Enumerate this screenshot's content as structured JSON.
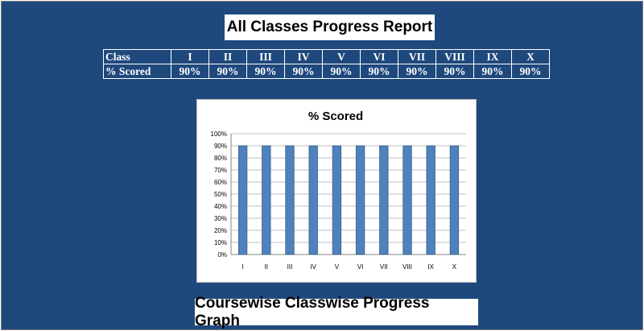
{
  "title": "All Classes Progress Report",
  "footer": "Coursewise Classwise Progress Graph",
  "table": {
    "header_label": "Class",
    "row_label": "% Scored",
    "classes": [
      "I",
      "II",
      "III",
      "IV",
      "V",
      "VI",
      "VII",
      "VIII",
      "IX",
      "X"
    ],
    "scores": [
      "90%",
      "90%",
      "90%",
      "90%",
      "90%",
      "90%",
      "90%",
      "90%",
      "90%",
      "90%"
    ]
  },
  "colors": {
    "background": "#1f497d",
    "bar": "#4f81bd",
    "bar_border": "#385d8a",
    "gridline": "#bfbfbf"
  },
  "chart_data": {
    "type": "bar",
    "title": "% Scored",
    "categories": [
      "I",
      "II",
      "III",
      "IV",
      "V",
      "VI",
      "VII",
      "VIII",
      "IX",
      "X"
    ],
    "values": [
      90,
      90,
      90,
      90,
      90,
      90,
      90,
      90,
      90,
      90
    ],
    "ylim": [
      0,
      100
    ],
    "yticks": [
      "0%",
      "10%",
      "20%",
      "30%",
      "40%",
      "50%",
      "60%",
      "70%",
      "80%",
      "90%",
      "100%"
    ],
    "grid": true,
    "legend": "none"
  }
}
